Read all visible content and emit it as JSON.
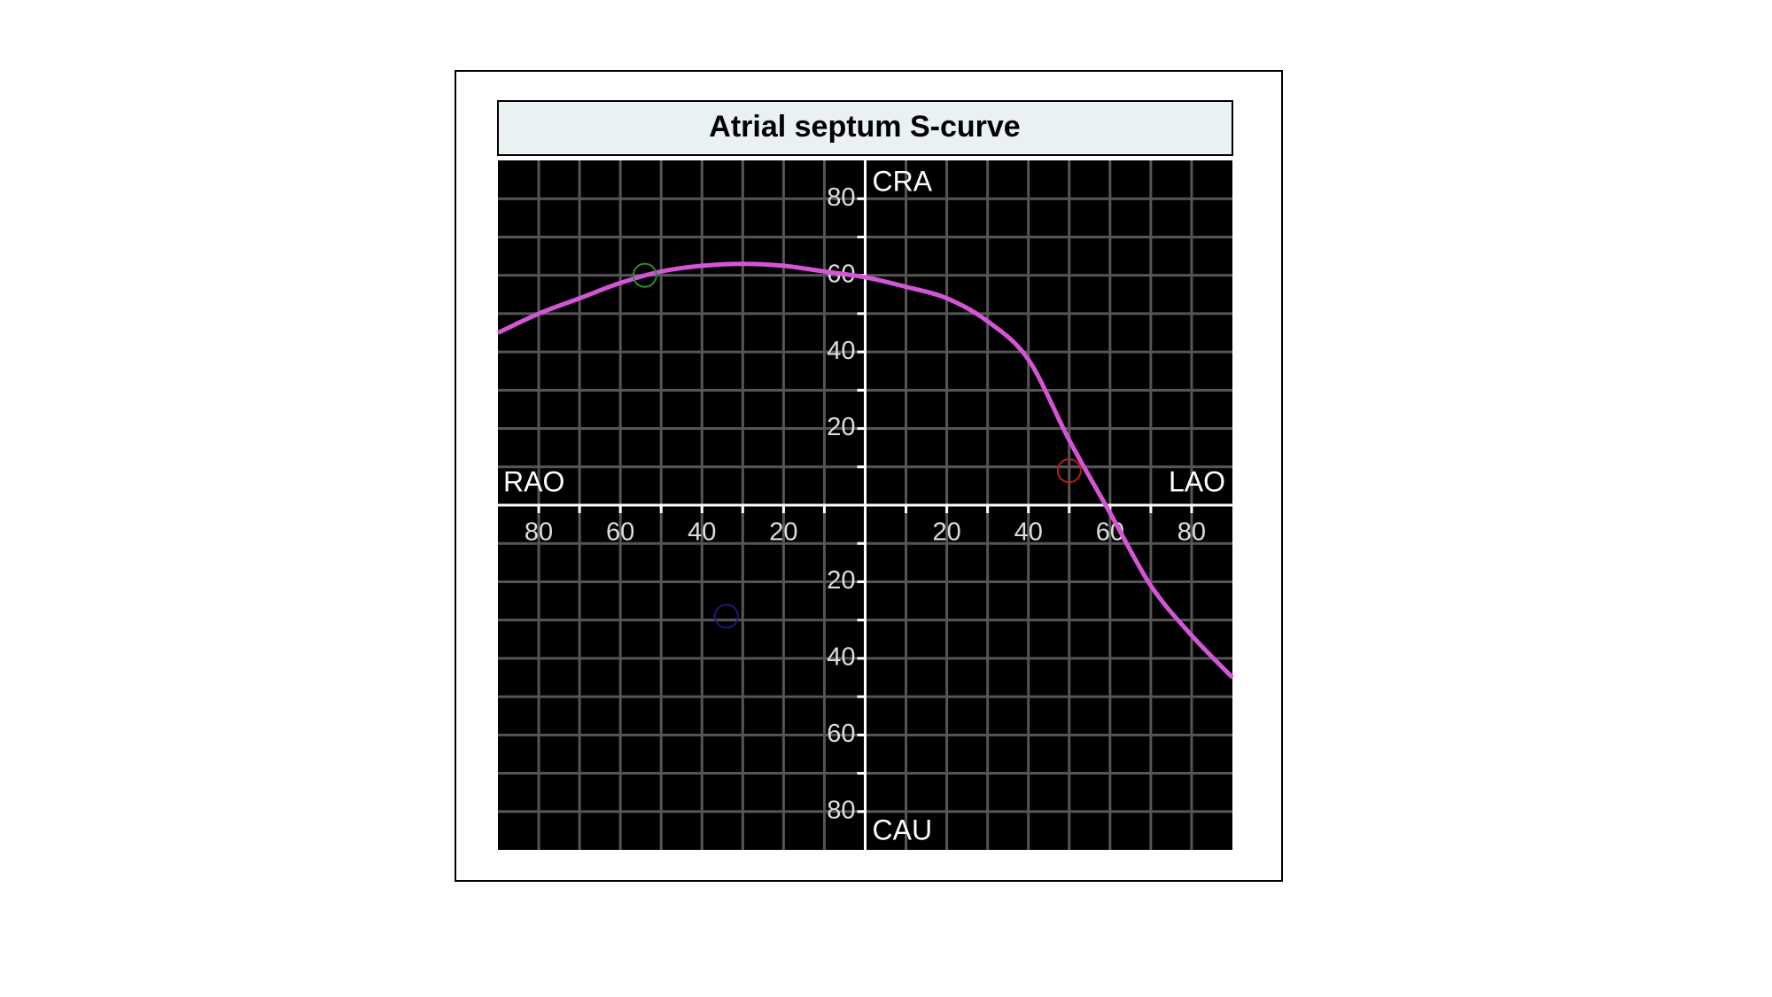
{
  "chart_data": {
    "type": "line",
    "title": "Atrial septum S-curve",
    "x": [
      -90,
      -80,
      -70,
      -60,
      -50,
      -40,
      -30,
      -20,
      -10,
      0,
      10,
      20,
      30,
      40,
      50,
      60,
      70,
      80,
      90
    ],
    "series": [
      {
        "color": "#d455d6",
        "values": [
          45,
          50,
          54,
          58,
          61,
          62.5,
          63,
          62.5,
          61,
          59.5,
          57,
          54,
          48,
          38,
          17,
          -2,
          -21,
          -34,
          -45
        ]
      }
    ],
    "markers": [
      {
        "x": -54,
        "y": 60,
        "color": "#2e8b2e"
      },
      {
        "x": 50,
        "y": 9,
        "color": "#b02020"
      },
      {
        "x": -34,
        "y": -29,
        "color": "#1a1a80"
      }
    ],
    "xlim": [
      -90,
      90
    ],
    "ylim": [
      -90,
      90
    ],
    "xticks": [
      {
        "value": -80,
        "label": "80"
      },
      {
        "value": -60,
        "label": "60"
      },
      {
        "value": -40,
        "label": "40"
      },
      {
        "value": -20,
        "label": "20"
      },
      20,
      40,
      60,
      80
    ],
    "yticks": [
      {
        "value": -80,
        "label": "80"
      },
      {
        "value": -60,
        "label": "60"
      },
      {
        "value": -40,
        "label": "40"
      },
      {
        "value": -20,
        "label": "20"
      },
      20,
      40,
      60,
      80
    ],
    "xgrid": [
      -80,
      -70,
      -60,
      -50,
      -40,
      -30,
      -20,
      -10,
      10,
      20,
      30,
      40,
      50,
      60,
      70,
      80
    ],
    "ygrid": [
      -80,
      -70,
      -60,
      -50,
      -40,
      -30,
      -20,
      -10,
      10,
      20,
      30,
      40,
      50,
      60,
      70,
      80
    ],
    "grid": true,
    "xlabel_left": "RAO",
    "xlabel_right": "LAO",
    "ylabel_top": "CRA",
    "ylabel_bottom": "CAU"
  }
}
